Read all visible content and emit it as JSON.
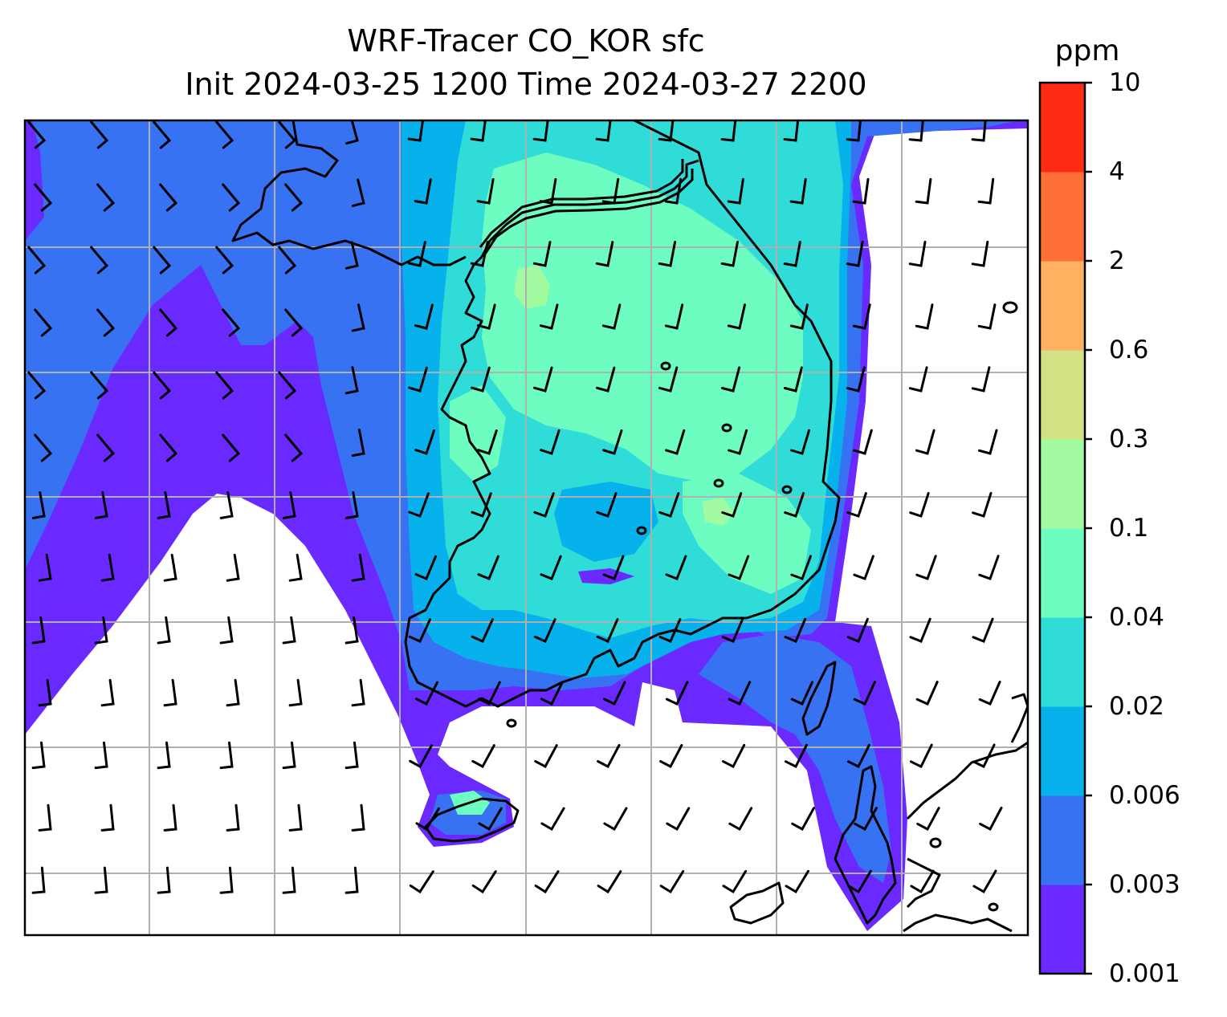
{
  "title": {
    "line1": "WRF-Tracer CO_KOR sfc",
    "line2": "Init 2024-03-25 1200 Time 2024-03-27 2200"
  },
  "colorbar": {
    "unit": "ppm",
    "levels": [
      "0.001",
      "0.003",
      "0.006",
      "0.02",
      "0.04",
      "0.1",
      "0.3",
      "0.6",
      "2",
      "4",
      "10"
    ],
    "colors": [
      "#6a2aff",
      "#3672f2",
      "#07b2ec",
      "#2fdcd8",
      "#6efdc0",
      "#a2fba0",
      "#d2e183",
      "#ffb060",
      "#ff7038",
      "#ff2a14"
    ]
  },
  "map": {
    "field": "CO_KOR surface concentration",
    "overlay": "wind barbs",
    "coastline_color": "#000000",
    "grid_color": "#b0b0b0"
  }
}
